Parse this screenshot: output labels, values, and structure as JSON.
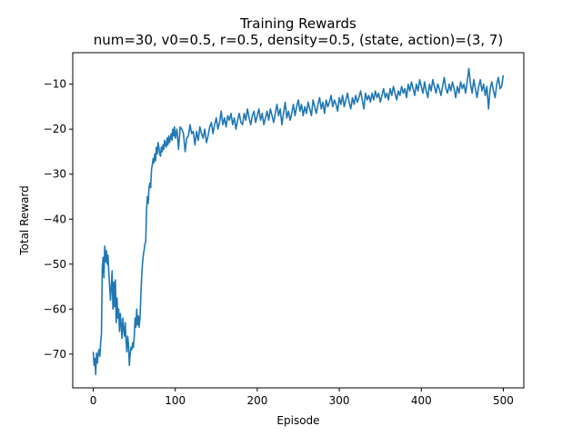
{
  "chart_data": {
    "type": "line",
    "title": "Training Rewards",
    "subtitle": "num=30, v0=0.5, r=0.5, density=0.5, (state, action)=(3, 7)",
    "xlabel": "Episode",
    "ylabel": "Total Reward",
    "xlim": [
      -25,
      525
    ],
    "ylim": [
      -77.5,
      -3
    ],
    "xticks": [
      0,
      100,
      200,
      300,
      400,
      500
    ],
    "yticks": [
      -70,
      -60,
      -50,
      -40,
      -30,
      -20,
      -10
    ],
    "grid": false,
    "series": [
      {
        "color": "#1f77b4",
        "points": [
          [
            0,
            -69.5
          ],
          [
            1,
            -72.5
          ],
          [
            2,
            -71
          ],
          [
            3,
            -74.5
          ],
          [
            4,
            -69.8
          ],
          [
            5,
            -72
          ],
          [
            6,
            -70
          ],
          [
            7,
            -69
          ],
          [
            8,
            -70.5
          ],
          [
            9,
            -67.5
          ],
          [
            10,
            -65.5
          ],
          [
            11,
            -51
          ],
          [
            12,
            -48.5
          ],
          [
            13,
            -53
          ],
          [
            14,
            -46
          ],
          [
            15,
            -49.5
          ],
          [
            16,
            -47
          ],
          [
            17,
            -50
          ],
          [
            18,
            -48
          ],
          [
            19,
            -52
          ],
          [
            20,
            -55
          ],
          [
            21,
            -58
          ],
          [
            22,
            -55
          ],
          [
            23,
            -51.5
          ],
          [
            24,
            -60
          ],
          [
            25,
            -54
          ],
          [
            26,
            -59.5
          ],
          [
            27,
            -53.5
          ],
          [
            28,
            -63
          ],
          [
            29,
            -57.5
          ],
          [
            30,
            -62
          ],
          [
            31,
            -60
          ],
          [
            32,
            -65
          ],
          [
            33,
            -61
          ],
          [
            34,
            -63.5
          ],
          [
            35,
            -66.5
          ],
          [
            36,
            -62
          ],
          [
            37,
            -64.5
          ],
          [
            38,
            -66
          ],
          [
            39,
            -63
          ],
          [
            40,
            -67
          ],
          [
            41,
            -69.5
          ],
          [
            42,
            -66
          ],
          [
            43,
            -68
          ],
          [
            44,
            -72.5
          ],
          [
            45,
            -70
          ],
          [
            46,
            -68.5
          ],
          [
            47,
            -69
          ],
          [
            48,
            -67.5
          ],
          [
            49,
            -68.5
          ],
          [
            50,
            -66
          ],
          [
            51,
            -62
          ],
          [
            52,
            -64
          ],
          [
            53,
            -60
          ],
          [
            54,
            -63.5
          ],
          [
            55,
            -61.5
          ],
          [
            56,
            -64
          ],
          [
            57,
            -62
          ],
          [
            58,
            -57
          ],
          [
            59,
            -53
          ],
          [
            60,
            -50
          ],
          [
            61,
            -48
          ],
          [
            62,
            -47
          ],
          [
            63,
            -45.5
          ],
          [
            64,
            -45
          ],
          [
            65,
            -38
          ],
          [
            66,
            -35
          ],
          [
            67,
            -36.5
          ],
          [
            68,
            -33
          ],
          [
            69,
            -32
          ],
          [
            70,
            -33
          ],
          [
            71,
            -29
          ],
          [
            72,
            -28
          ],
          [
            73,
            -26.5
          ],
          [
            74,
            -27.5
          ],
          [
            75,
            -25.5
          ],
          [
            76,
            -27
          ],
          [
            77,
            -24
          ],
          [
            78,
            -25.5
          ],
          [
            79,
            -23
          ],
          [
            80,
            -24
          ],
          [
            81,
            -25.5
          ],
          [
            82,
            -26
          ],
          [
            83,
            -24
          ],
          [
            84,
            -25
          ],
          [
            85,
            -23.5
          ],
          [
            86,
            -24.5
          ],
          [
            87,
            -22.5
          ],
          [
            88,
            -23.5
          ],
          [
            89,
            -24
          ],
          [
            90,
            -22
          ],
          [
            91,
            -23.5
          ],
          [
            92,
            -21.5
          ],
          [
            93,
            -23
          ],
          [
            94,
            -22
          ],
          [
            95,
            -21
          ],
          [
            96,
            -22.5
          ],
          [
            97,
            -20
          ],
          [
            98,
            -21.5
          ],
          [
            99,
            -19.5
          ],
          [
            100,
            -22
          ],
          [
            102,
            -20
          ],
          [
            104,
            -24.5
          ],
          [
            106,
            -19.5
          ],
          [
            108,
            -20
          ],
          [
            110,
            -21
          ],
          [
            112,
            -25
          ],
          [
            114,
            -22
          ],
          [
            116,
            -21.5
          ],
          [
            118,
            -19
          ],
          [
            120,
            -21
          ],
          [
            122,
            -20.5
          ],
          [
            124,
            -23.5
          ],
          [
            126,
            -20.5
          ],
          [
            128,
            -22.5
          ],
          [
            130,
            -19.5
          ],
          [
            132,
            -21
          ],
          [
            134,
            -22
          ],
          [
            136,
            -20
          ],
          [
            138,
            -23
          ],
          [
            140,
            -21.5
          ],
          [
            142,
            -19.5
          ],
          [
            144,
            -18.5
          ],
          [
            146,
            -21
          ],
          [
            148,
            -19
          ],
          [
            150,
            -17.5
          ],
          [
            152,
            -20
          ],
          [
            154,
            -18.5
          ],
          [
            156,
            -16
          ],
          [
            158,
            -19
          ],
          [
            160,
            -17.5
          ],
          [
            162,
            -19.5
          ],
          [
            164,
            -17
          ],
          [
            166,
            -18
          ],
          [
            168,
            -16.5
          ],
          [
            170,
            -19
          ],
          [
            172,
            -17.5
          ],
          [
            174,
            -20
          ],
          [
            176,
            -18
          ],
          [
            178,
            -16.5
          ],
          [
            180,
            -18.5
          ],
          [
            182,
            -19
          ],
          [
            184,
            -16.5
          ],
          [
            186,
            -18
          ],
          [
            188,
            -15.5
          ],
          [
            190,
            -17.5
          ],
          [
            192,
            -19
          ],
          [
            194,
            -17
          ],
          [
            196,
            -16
          ],
          [
            198,
            -18.5
          ],
          [
            200,
            -17
          ],
          [
            202,
            -15.5
          ],
          [
            204,
            -18
          ],
          [
            206,
            -16.5
          ],
          [
            208,
            -19
          ],
          [
            210,
            -17.5
          ],
          [
            212,
            -16
          ],
          [
            214,
            -18
          ],
          [
            216,
            -15.5
          ],
          [
            218,
            -17
          ],
          [
            220,
            -18.5
          ],
          [
            222,
            -16.5
          ],
          [
            224,
            -14.5
          ],
          [
            226,
            -17
          ],
          [
            228,
            -15.5
          ],
          [
            230,
            -19
          ],
          [
            232,
            -16.5
          ],
          [
            234,
            -14
          ],
          [
            236,
            -17.5
          ],
          [
            238,
            -16
          ],
          [
            240,
            -18
          ],
          [
            242,
            -16.5
          ],
          [
            244,
            -14.5
          ],
          [
            246,
            -17
          ],
          [
            248,
            -15
          ],
          [
            250,
            -13.5
          ],
          [
            252,
            -16
          ],
          [
            254,
            -14.5
          ],
          [
            256,
            -17
          ],
          [
            258,
            -15
          ],
          [
            260,
            -16.5
          ],
          [
            262,
            -14
          ],
          [
            264,
            -15.5
          ],
          [
            266,
            -17
          ],
          [
            268,
            -13.5
          ],
          [
            270,
            -15
          ],
          [
            272,
            -16.5
          ],
          [
            274,
            -14.5
          ],
          [
            276,
            -13
          ],
          [
            278,
            -15.5
          ],
          [
            280,
            -14
          ],
          [
            282,
            -16.5
          ],
          [
            284,
            -13.5
          ],
          [
            286,
            -15
          ],
          [
            288,
            -14
          ],
          [
            290,
            -12.5
          ],
          [
            292,
            -15
          ],
          [
            294,
            -13.5
          ],
          [
            296,
            -14.5
          ],
          [
            298,
            -16
          ],
          [
            300,
            -13
          ],
          [
            302,
            -14.5
          ],
          [
            304,
            -12.5
          ],
          [
            306,
            -15
          ],
          [
            308,
            -13.5
          ],
          [
            310,
            -12
          ],
          [
            312,
            -14
          ],
          [
            314,
            -15.5
          ],
          [
            316,
            -13
          ],
          [
            318,
            -14.5
          ],
          [
            320,
            -12.5
          ],
          [
            322,
            -14
          ],
          [
            324,
            -13
          ],
          [
            326,
            -11.5
          ],
          [
            328,
            -13.5
          ],
          [
            330,
            -15.5
          ],
          [
            332,
            -12
          ],
          [
            334,
            -13.5
          ],
          [
            336,
            -12.5
          ],
          [
            338,
            -14
          ],
          [
            340,
            -12
          ],
          [
            342,
            -13.5
          ],
          [
            344,
            -11.5
          ],
          [
            346,
            -13
          ],
          [
            348,
            -12
          ],
          [
            350,
            -14
          ],
          [
            352,
            -12.5
          ],
          [
            354,
            -11
          ],
          [
            356,
            -13
          ],
          [
            358,
            -12
          ],
          [
            360,
            -13.5
          ],
          [
            362,
            -11
          ],
          [
            364,
            -12.5
          ],
          [
            366,
            -10.5
          ],
          [
            368,
            -12
          ],
          [
            370,
            -13.5
          ],
          [
            372,
            -11.5
          ],
          [
            374,
            -12.5
          ],
          [
            376,
            -10.5
          ],
          [
            378,
            -12
          ],
          [
            380,
            -11
          ],
          [
            382,
            -13
          ],
          [
            384,
            -10
          ],
          [
            386,
            -11.5
          ],
          [
            388,
            -9.5
          ],
          [
            390,
            -11
          ],
          [
            392,
            -12.5
          ],
          [
            394,
            -10
          ],
          [
            396,
            -11.5
          ],
          [
            398,
            -9
          ],
          [
            400,
            -10.5
          ],
          [
            402,
            -12
          ],
          [
            404,
            -9.5
          ],
          [
            406,
            -11.5
          ],
          [
            408,
            -13
          ],
          [
            410,
            -10
          ],
          [
            412,
            -11.5
          ],
          [
            414,
            -9
          ],
          [
            416,
            -10.5
          ],
          [
            418,
            -12
          ],
          [
            420,
            -10
          ],
          [
            422,
            -11
          ],
          [
            424,
            -12.5
          ],
          [
            426,
            -10.5
          ],
          [
            428,
            -8.5
          ],
          [
            430,
            -11
          ],
          [
            432,
            -12
          ],
          [
            434,
            -10
          ],
          [
            436,
            -11.5
          ],
          [
            438,
            -9.5
          ],
          [
            440,
            -11
          ],
          [
            442,
            -13
          ],
          [
            444,
            -10.5
          ],
          [
            446,
            -12
          ],
          [
            448,
            -9.5
          ],
          [
            450,
            -11
          ],
          [
            452,
            -10
          ],
          [
            454,
            -12
          ],
          [
            456,
            -9.5
          ],
          [
            458,
            -6.5
          ],
          [
            460,
            -10
          ],
          [
            462,
            -12
          ],
          [
            464,
            -9
          ],
          [
            466,
            -11
          ],
          [
            468,
            -13
          ],
          [
            470,
            -10.5
          ],
          [
            472,
            -9
          ],
          [
            474,
            -11.5
          ],
          [
            476,
            -10
          ],
          [
            478,
            -12.5
          ],
          [
            480,
            -10.5
          ],
          [
            482,
            -15.5
          ],
          [
            484,
            -11
          ],
          [
            486,
            -9.5
          ],
          [
            488,
            -11.5
          ],
          [
            490,
            -13
          ],
          [
            492,
            -10
          ],
          [
            494,
            -8.5
          ],
          [
            496,
            -11
          ],
          [
            498,
            -10.5
          ],
          [
            500,
            -8
          ]
        ]
      }
    ]
  }
}
